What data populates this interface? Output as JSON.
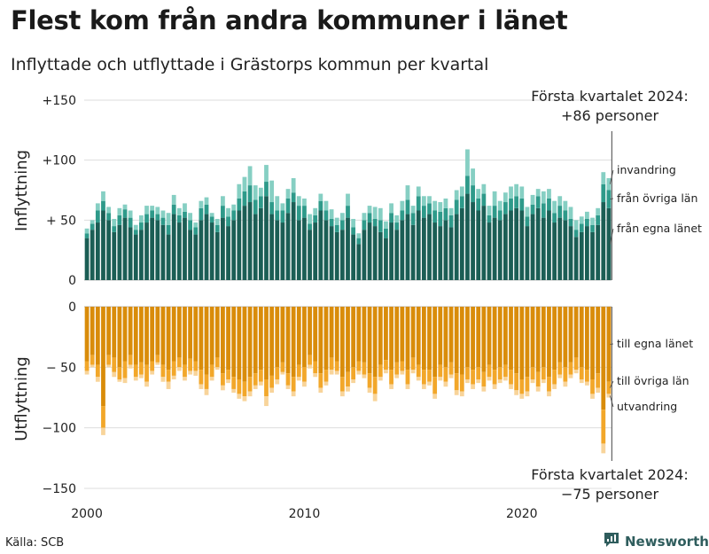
{
  "title": "Flest kom från andra kommuner i länet",
  "subtitle": "Inflyttade och utflyttade i Grästorps kommun per kvartal",
  "source": "Källa: SCB",
  "brand": {
    "name": "Newsworthy",
    "icon": "newsworthy-logo-icon",
    "color": "#2f5d5d"
  },
  "chart_data": {
    "type": "bar",
    "stacked": true,
    "grid": true,
    "x_ticks": [
      "2000",
      "2010",
      "2020"
    ],
    "x_range": [
      "2000 Q1",
      "2024 Q1"
    ],
    "panels": [
      {
        "ylabel": "Inflyttning",
        "ylim": [
          0,
          150
        ],
        "y_ticks": [
          {
            "value": 0,
            "label": "0"
          },
          {
            "value": 50,
            "label": "+ 50"
          },
          {
            "value": 100,
            "label": "+100"
          },
          {
            "value": 150,
            "label": "+150"
          }
        ],
        "annotation": [
          "Första kvartalet 2024:",
          "+86 personer"
        ],
        "series": [
          {
            "name": "från egna länet",
            "color": "#1b5e55"
          },
          {
            "name": "från övriga län",
            "color": "#2e9a8a"
          },
          {
            "name": "invandring",
            "color": "#86cfc3"
          }
        ]
      },
      {
        "ylabel": "Utflyttning",
        "ylim": [
          -150,
          0
        ],
        "y_ticks": [
          {
            "value": 0,
            "label": "0"
          },
          {
            "value": -50,
            "label": "− 50"
          },
          {
            "value": -100,
            "label": "−100"
          },
          {
            "value": -150,
            "label": "−150"
          }
        ],
        "annotation": [
          "Första kvartalet 2024:",
          "−75 personer"
        ],
        "series": [
          {
            "name": "till egna länet",
            "color": "#d98c0a"
          },
          {
            "name": "till övriga län",
            "color": "#f2a72a"
          },
          {
            "name": "utvandring",
            "color": "#f8d49a"
          }
        ]
      }
    ],
    "quarters": [
      "2000 Q1",
      "2000 Q2",
      "2000 Q3",
      "2000 Q4",
      "2001 Q1",
      "2001 Q2",
      "2001 Q3",
      "2001 Q4",
      "2002 Q1",
      "2002 Q2",
      "2002 Q3",
      "2002 Q4",
      "2003 Q1",
      "2003 Q2",
      "2003 Q3",
      "2003 Q4",
      "2004 Q1",
      "2004 Q2",
      "2004 Q3",
      "2004 Q4",
      "2005 Q1",
      "2005 Q2",
      "2005 Q3",
      "2005 Q4",
      "2006 Q1",
      "2006 Q2",
      "2006 Q3",
      "2006 Q4",
      "2007 Q1",
      "2007 Q2",
      "2007 Q3",
      "2007 Q4",
      "2008 Q1",
      "2008 Q2",
      "2008 Q3",
      "2008 Q4",
      "2009 Q1",
      "2009 Q2",
      "2009 Q3",
      "2009 Q4",
      "2010 Q1",
      "2010 Q2",
      "2010 Q3",
      "2010 Q4",
      "2011 Q1",
      "2011 Q2",
      "2011 Q3",
      "2011 Q4",
      "2012 Q1",
      "2012 Q2",
      "2012 Q3",
      "2012 Q4",
      "2013 Q1",
      "2013 Q2",
      "2013 Q3",
      "2013 Q4",
      "2014 Q1",
      "2014 Q2",
      "2014 Q3",
      "2014 Q4",
      "2015 Q1",
      "2015 Q2",
      "2015 Q3",
      "2015 Q4",
      "2016 Q1",
      "2016 Q2",
      "2016 Q3",
      "2016 Q4",
      "2017 Q1",
      "2017 Q2",
      "2017 Q3",
      "2017 Q4",
      "2018 Q1",
      "2018 Q2",
      "2018 Q3",
      "2018 Q4",
      "2019 Q1",
      "2019 Q2",
      "2019 Q3",
      "2019 Q4",
      "2020 Q1",
      "2020 Q2",
      "2020 Q3",
      "2020 Q4",
      "2021 Q1",
      "2021 Q2",
      "2021 Q3",
      "2021 Q4",
      "2022 Q1",
      "2022 Q2",
      "2022 Q3",
      "2022 Q4",
      "2023 Q1",
      "2023 Q2",
      "2023 Q3",
      "2023 Q4",
      "2024 Q1"
    ],
    "inflow": {
      "egna_lanet": [
        35,
        42,
        48,
        58,
        50,
        40,
        46,
        52,
        44,
        38,
        42,
        48,
        52,
        50,
        46,
        38,
        55,
        48,
        52,
        42,
        38,
        50,
        55,
        48,
        40,
        52,
        45,
        50,
        58,
        62,
        65,
        55,
        60,
        70,
        55,
        50,
        48,
        56,
        65,
        50,
        52,
        42,
        48,
        58,
        50,
        45,
        40,
        42,
        52,
        38,
        30,
        42,
        48,
        45,
        40,
        35,
        48,
        42,
        50,
        55,
        46,
        58,
        52,
        55,
        48,
        45,
        50,
        44,
        55,
        60,
        72,
        65,
        58,
        62,
        48,
        52,
        50,
        55,
        58,
        60,
        58,
        45,
        55,
        60,
        52,
        58,
        48,
        52,
        50,
        45,
        36,
        40,
        45,
        40,
        46,
        65,
        60
      ],
      "ovriga_lan": [
        4,
        5,
        10,
        8,
        6,
        5,
        8,
        7,
        8,
        4,
        6,
        7,
        6,
        5,
        6,
        8,
        8,
        6,
        5,
        8,
        6,
        10,
        8,
        5,
        6,
        10,
        8,
        8,
        10,
        12,
        14,
        12,
        10,
        12,
        10,
        8,
        10,
        12,
        8,
        12,
        10,
        5,
        6,
        8,
        8,
        6,
        6,
        8,
        10,
        6,
        5,
        8,
        8,
        6,
        10,
        8,
        8,
        6,
        8,
        12,
        10,
        12,
        10,
        9,
        10,
        12,
        10,
        10,
        12,
        10,
        15,
        14,
        10,
        10,
        6,
        10,
        8,
        10,
        10,
        10,
        10,
        8,
        8,
        10,
        12,
        10,
        8,
        10,
        8,
        6,
        6,
        7,
        6,
        6,
        8,
        15,
        15
      ],
      "invandring": [
        4,
        3,
        6,
        8,
        5,
        6,
        6,
        4,
        6,
        4,
        6,
        7,
        4,
        6,
        6,
        10,
        8,
        6,
        7,
        6,
        4,
        6,
        6,
        3,
        5,
        8,
        7,
        5,
        12,
        12,
        16,
        12,
        7,
        14,
        18,
        12,
        6,
        8,
        12,
        8,
        6,
        8,
        6,
        6,
        8,
        8,
        6,
        6,
        10,
        7,
        4,
        6,
        6,
        10,
        10,
        6,
        8,
        6,
        8,
        12,
        6,
        8,
        8,
        6,
        8,
        8,
        8,
        6,
        8,
        8,
        22,
        14,
        8,
        8,
        8,
        12,
        8,
        8,
        10,
        10,
        10,
        8,
        8,
        6,
        10,
        8,
        10,
        8,
        8,
        10,
        8,
        6,
        6,
        6,
        6,
        10,
        10
      ]
    },
    "outflow": {
      "egna_lanet": [
        45,
        40,
        48,
        82,
        40,
        42,
        50,
        45,
        40,
        48,
        46,
        48,
        45,
        40,
        48,
        52,
        45,
        42,
        48,
        43,
        45,
        52,
        56,
        48,
        42,
        55,
        52,
        58,
        60,
        62,
        58,
        55,
        52,
        60,
        57,
        50,
        46,
        55,
        58,
        48,
        50,
        40,
        45,
        55,
        52,
        42,
        45,
        58,
        54,
        50,
        45,
        46,
        55,
        58,
        48,
        44,
        52,
        46,
        45,
        52,
        42,
        48,
        52,
        52,
        58,
        48,
        50,
        46,
        55,
        56,
        50,
        52,
        50,
        54,
        48,
        52,
        50,
        48,
        52,
        55,
        60,
        58,
        50,
        54,
        50,
        58,
        52,
        46,
        50,
        46,
        42,
        50,
        52,
        60,
        55,
        85,
        62
      ],
      "ovriga_lan": [
        8,
        8,
        10,
        18,
        8,
        12,
        10,
        14,
        8,
        10,
        10,
        14,
        8,
        6,
        10,
        10,
        12,
        8,
        10,
        10,
        8,
        12,
        12,
        10,
        8,
        10,
        8,
        10,
        12,
        12,
        12,
        10,
        10,
        14,
        10,
        10,
        8,
        10,
        12,
        10,
        12,
        8,
        10,
        12,
        10,
        10,
        8,
        12,
        12,
        10,
        8,
        10,
        12,
        14,
        10,
        8,
        12,
        10,
        8,
        12,
        10,
        10,
        12,
        10,
        14,
        10,
        12,
        10,
        14,
        14,
        10,
        12,
        10,
        12,
        10,
        12,
        10,
        10,
        12,
        14,
        12,
        12,
        10,
        12,
        10,
        12,
        12,
        10,
        12,
        10,
        10,
        10,
        10,
        12,
        12,
        28,
        10
      ],
      "utvandring": [
        3,
        2,
        4,
        6,
        2,
        4,
        2,
        4,
        3,
        3,
        3,
        4,
        3,
        2,
        4,
        6,
        3,
        3,
        3,
        3,
        4,
        4,
        5,
        3,
        2,
        4,
        3,
        3,
        4,
        4,
        4,
        3,
        3,
        8,
        4,
        4,
        2,
        3,
        4,
        3,
        4,
        3,
        3,
        4,
        3,
        4,
        3,
        4,
        4,
        3,
        3,
        3,
        4,
        6,
        3,
        3,
        4,
        3,
        3,
        4,
        3,
        3,
        4,
        3,
        4,
        3,
        4,
        3,
        4,
        4,
        3,
        4,
        3,
        4,
        3,
        4,
        3,
        3,
        4,
        4,
        4,
        4,
        3,
        4,
        3,
        4,
        4,
        3,
        4,
        3,
        3,
        3,
        3,
        4,
        4,
        8,
        3
      ]
    }
  }
}
